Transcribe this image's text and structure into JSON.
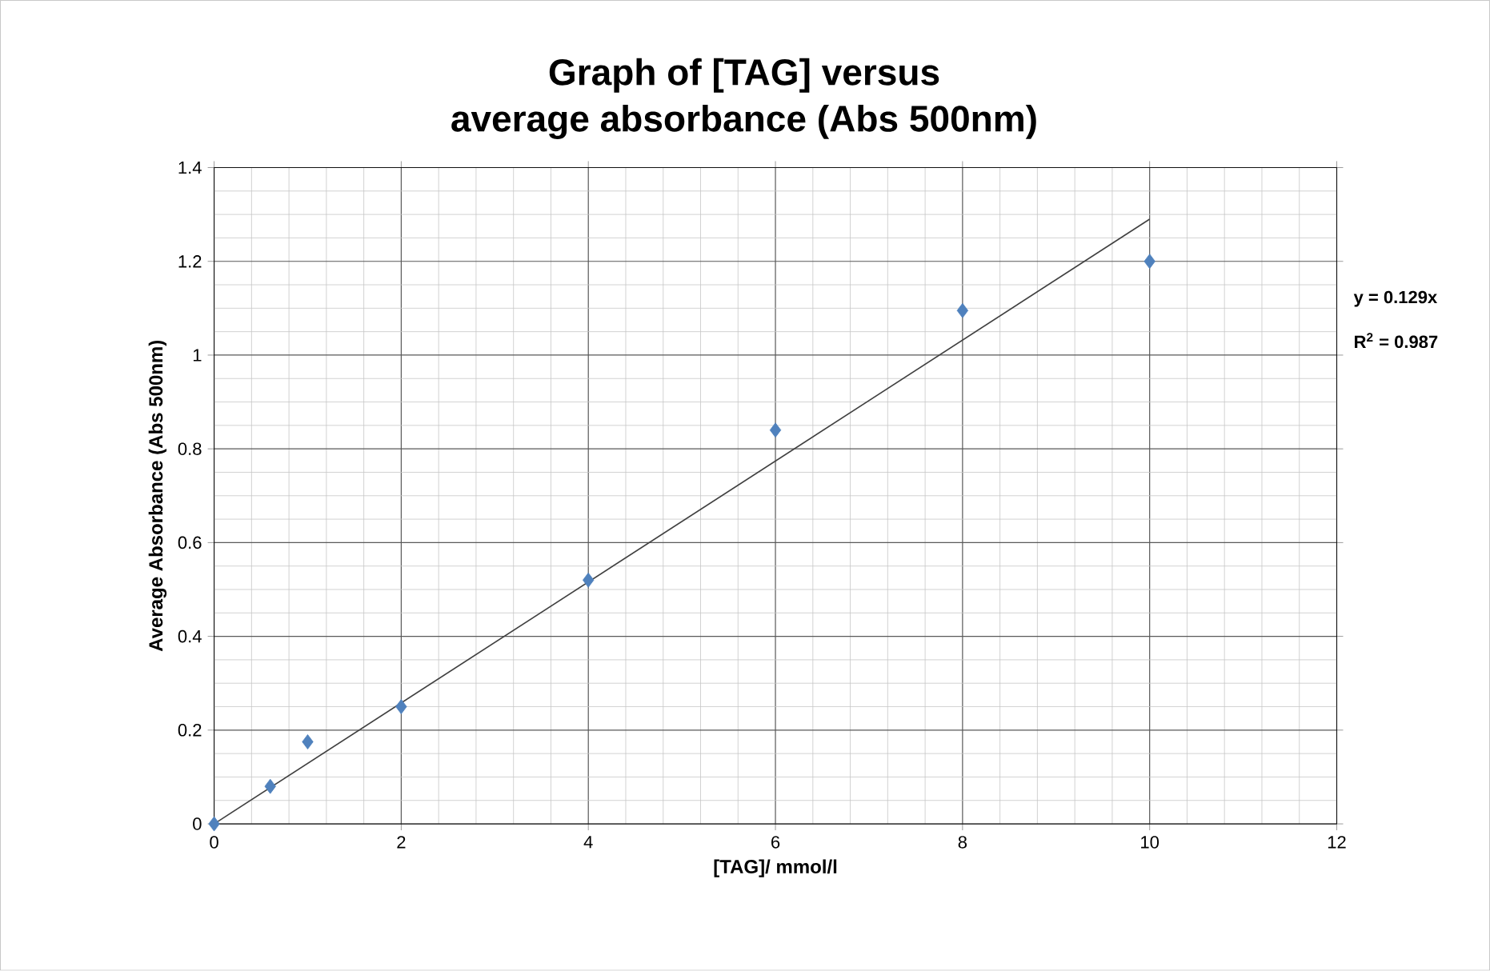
{
  "chart_data": {
    "type": "scatter",
    "title": "Graph of [TAG] versus\naverage absorbance (Abs 500nm)",
    "xlabel": "[TAG]/ mmol/l",
    "ylabel": "Average Absorbance (Abs 500nm)",
    "series": [
      {
        "color": "#4f81bd",
        "marker": "diamond",
        "x": [
          0,
          0.6,
          1,
          2,
          4,
          6,
          8,
          10
        ],
        "values": [
          0,
          0.08,
          0.175,
          0.25,
          0.52,
          0.84,
          1.095,
          1.2
        ]
      },
      {
        "type": "line",
        "color": "#404040",
        "marker": "none",
        "x": [
          0,
          10
        ],
        "values": [
          0,
          1.29
        ]
      }
    ],
    "xlim": [
      0,
      12
    ],
    "ylim": [
      0,
      1.4
    ],
    "xticks": [
      0,
      2,
      4,
      6,
      8,
      10,
      12
    ],
    "yticks": [
      0,
      0.2,
      0.4,
      0.6,
      0.8,
      1,
      1.2,
      1.4
    ],
    "grid": true,
    "annotations": [
      "y = 0.129x",
      "R$^{2}$ = 0.987"
    ]
  }
}
